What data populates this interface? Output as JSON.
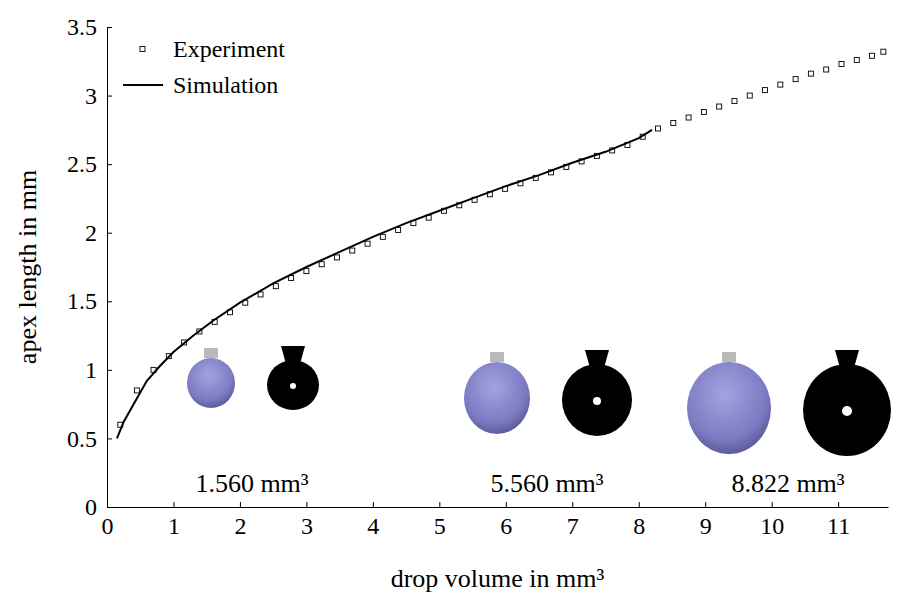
{
  "chart_data": {
    "type": "scatter",
    "x_label": "drop volume in mm³",
    "y_label": "apex length in mm",
    "xlim": [
      0,
      11.75
    ],
    "xticks": [
      0,
      1,
      2,
      3,
      4,
      5,
      6,
      7,
      8,
      9,
      10,
      11
    ],
    "ylim": [
      0,
      3.5
    ],
    "yticks": [
      0,
      0.5,
      1,
      1.5,
      2,
      2.5,
      3,
      3.5
    ],
    "grid": false,
    "legend": "upper left",
    "series": [
      {
        "name": "Experiment",
        "type": "scatter",
        "marker": "square",
        "color": "#000000",
        "x": [
          0.2,
          0.45,
          0.7,
          0.93,
          1.16,
          1.39,
          1.62,
          1.85,
          2.08,
          2.31,
          2.54,
          2.77,
          3.0,
          3.23,
          3.46,
          3.69,
          3.92,
          4.15,
          4.38,
          4.61,
          4.84,
          5.07,
          5.3,
          5.53,
          5.76,
          5.99,
          6.22,
          6.45,
          6.68,
          6.91,
          7.14,
          7.37,
          7.6,
          7.83,
          8.06,
          8.29,
          8.52,
          8.75,
          8.98,
          9.21,
          9.44,
          9.67,
          9.9,
          10.13,
          10.36,
          10.59,
          10.82,
          11.05,
          11.28,
          11.51,
          11.68
        ],
        "values": [
          0.6,
          0.85,
          1.0,
          1.1,
          1.2,
          1.28,
          1.35,
          1.42,
          1.49,
          1.55,
          1.61,
          1.67,
          1.72,
          1.77,
          1.82,
          1.87,
          1.92,
          1.97,
          2.02,
          2.07,
          2.11,
          2.16,
          2.2,
          2.24,
          2.28,
          2.32,
          2.36,
          2.4,
          2.44,
          2.48,
          2.52,
          2.56,
          2.6,
          2.64,
          2.7,
          2.76,
          2.8,
          2.84,
          2.88,
          2.92,
          2.96,
          3.0,
          3.04,
          3.08,
          3.12,
          3.16,
          3.19,
          3.23,
          3.26,
          3.29,
          3.32
        ]
      },
      {
        "name": "Simulation",
        "type": "line",
        "line_style": "solid",
        "color": "#000000",
        "x": [
          0.15,
          0.25,
          0.4,
          0.6,
          0.8,
          1.0,
          1.3,
          1.6,
          2.0,
          2.5,
          3.0,
          3.5,
          4.0,
          4.5,
          5.0,
          5.5,
          6.0,
          6.5,
          7.0,
          7.5,
          8.0,
          8.2
        ],
        "values": [
          0.5,
          0.62,
          0.75,
          0.92,
          1.03,
          1.13,
          1.25,
          1.36,
          1.49,
          1.63,
          1.75,
          1.86,
          1.97,
          2.07,
          2.16,
          2.25,
          2.34,
          2.42,
          2.51,
          2.59,
          2.69,
          2.75
        ]
      }
    ],
    "annotations": [
      {
        "text": "1.560 mm³"
      },
      {
        "text": "5.560 mm³"
      },
      {
        "text": "8.822 mm³"
      }
    ]
  }
}
